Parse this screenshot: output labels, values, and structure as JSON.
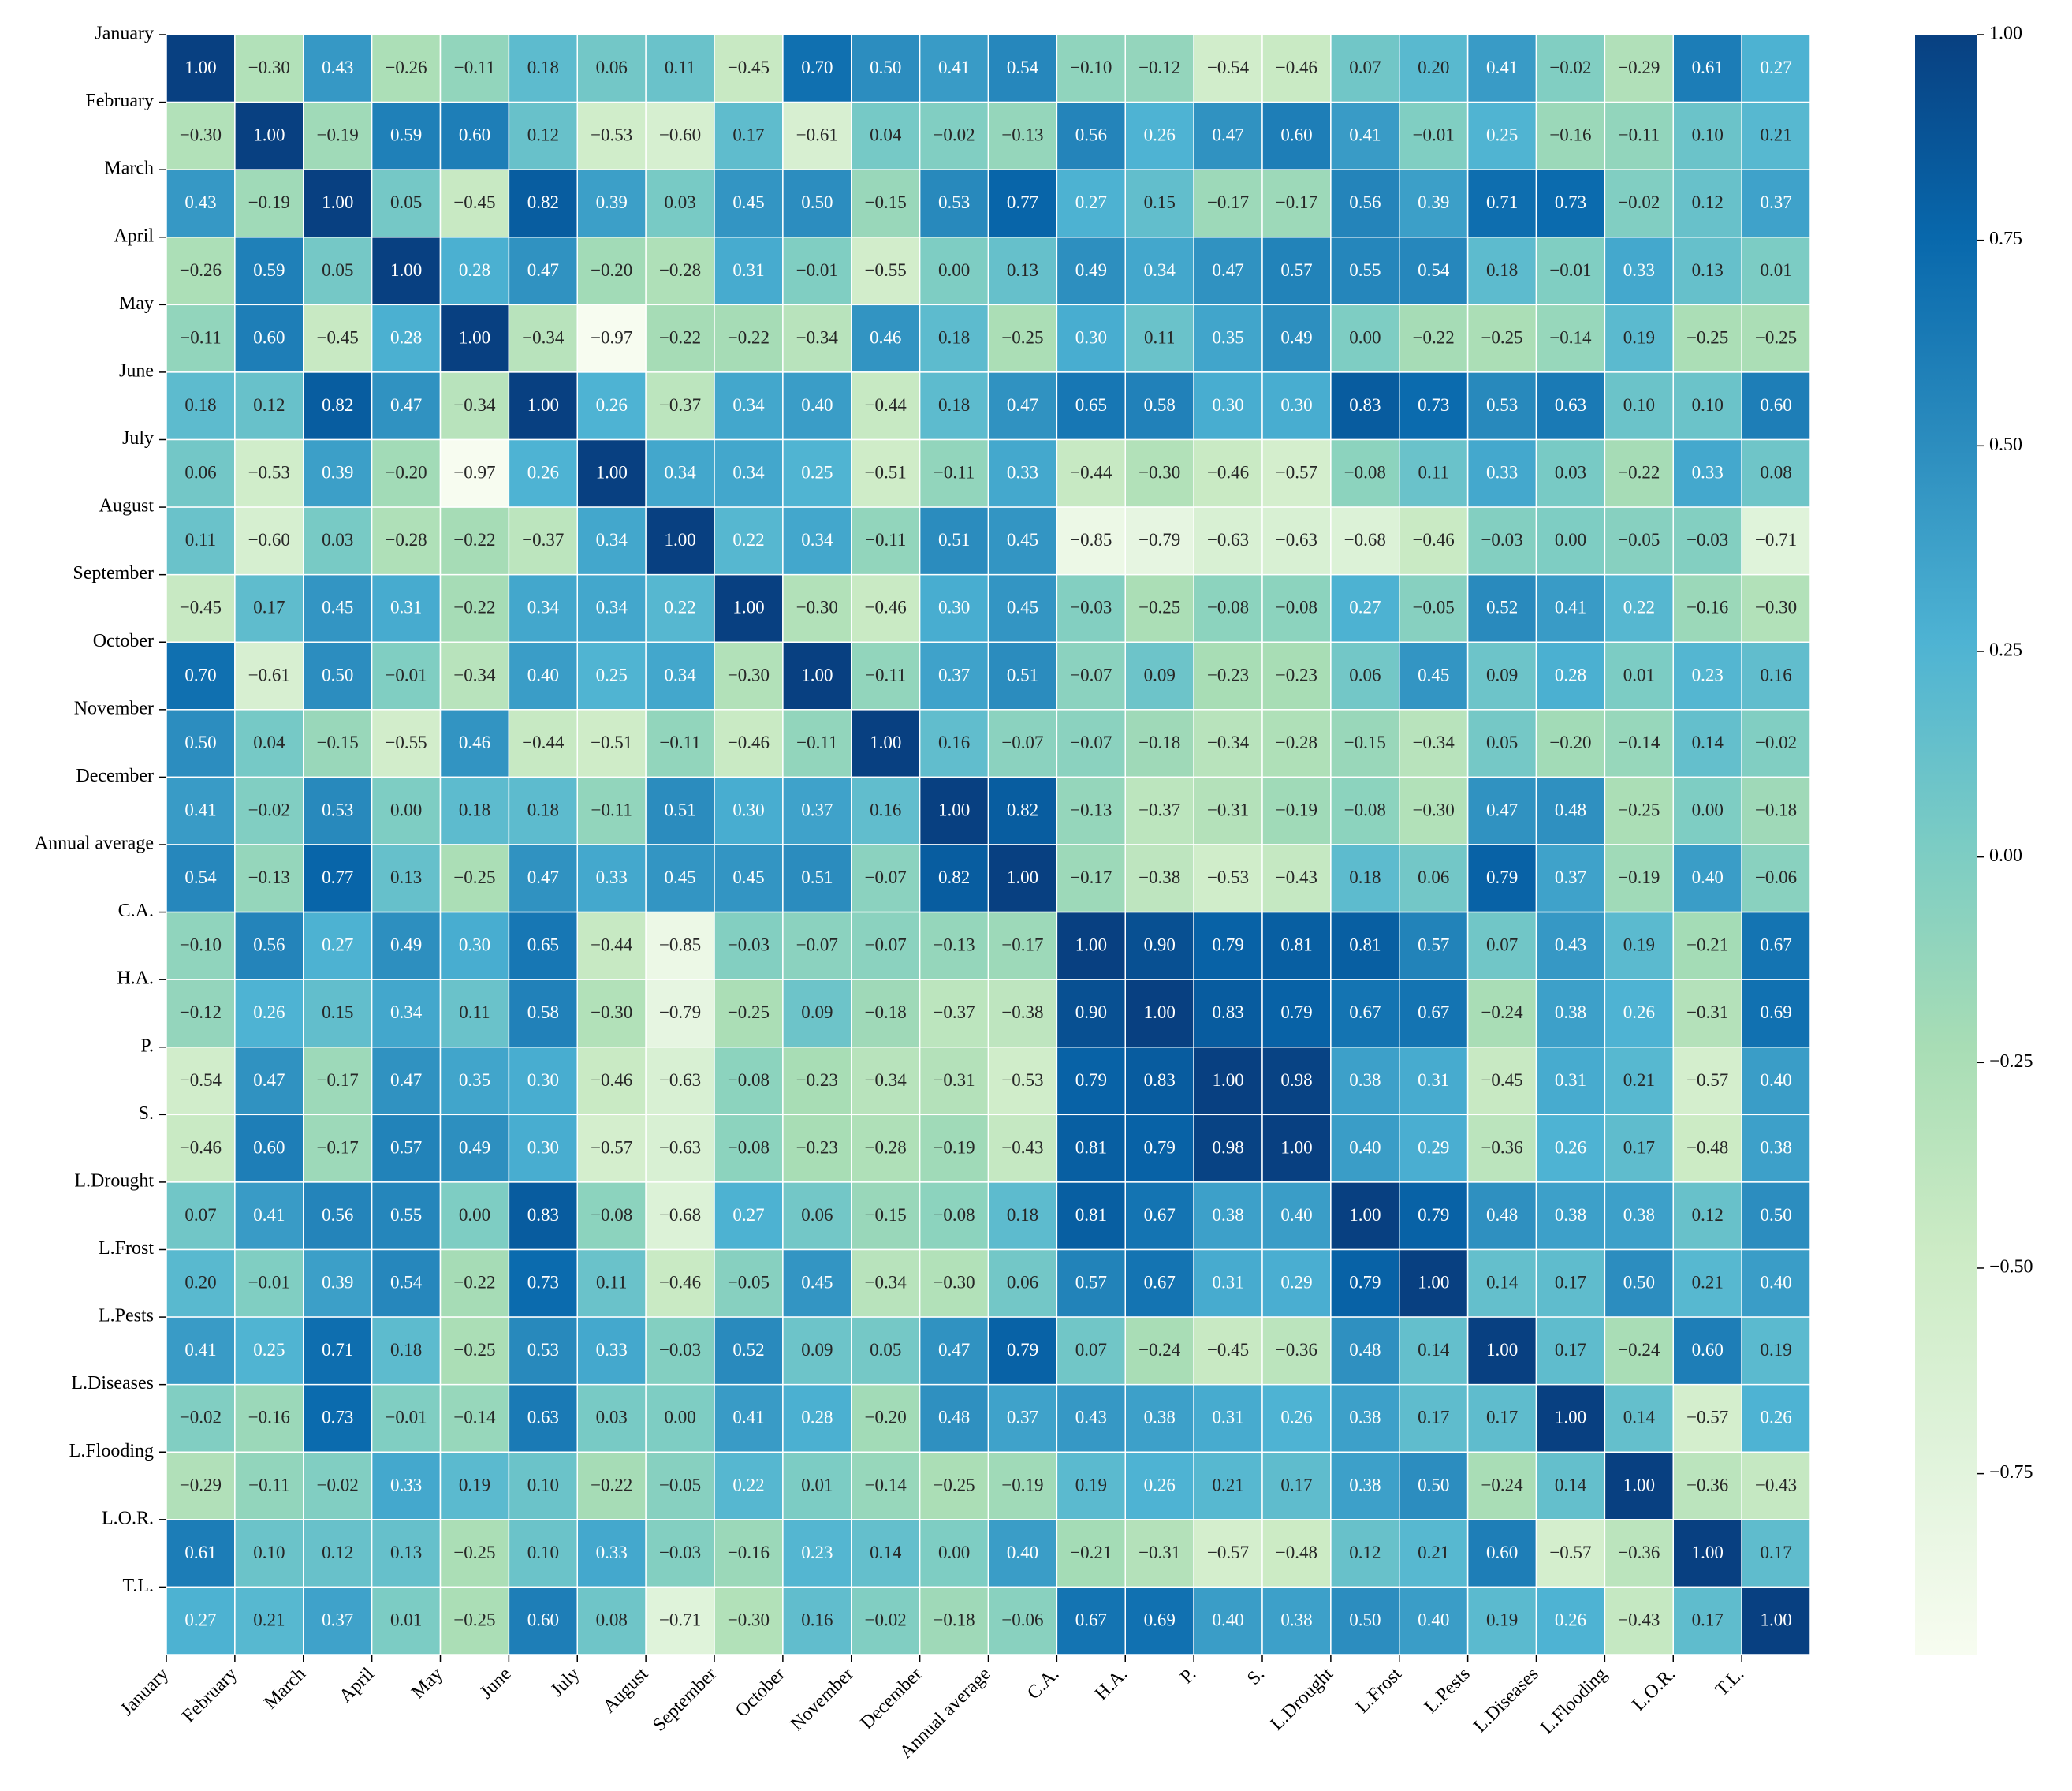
{
  "chart_data": {
    "type": "heatmap",
    "colormap": "GnBu",
    "clim": [
      -0.97,
      1.0
    ],
    "categories": [
      "January",
      "February",
      "March",
      "April",
      "May",
      "June",
      "July",
      "August",
      "September",
      "October",
      "November",
      "December",
      "Annual average",
      "C.A.",
      "H.A.",
      "P.",
      "S.",
      "L.Drought",
      "L.Frost",
      "L.Pests",
      "L.Diseases",
      "L.Flooding",
      "L.O.R.",
      "T.L."
    ],
    "values": [
      [
        1.0,
        -0.3,
        0.43,
        -0.26,
        -0.11,
        0.18,
        0.06,
        0.11,
        -0.45,
        0.7,
        0.5,
        0.41,
        0.54,
        -0.1,
        -0.12,
        -0.54,
        -0.46,
        0.07,
        0.2,
        0.41,
        -0.02,
        -0.29,
        0.61,
        0.27
      ],
      [
        -0.3,
        1.0,
        -0.19,
        0.59,
        0.6,
        0.12,
        -0.53,
        -0.6,
        0.17,
        -0.61,
        0.04,
        -0.02,
        -0.13,
        0.56,
        0.26,
        0.47,
        0.6,
        0.41,
        -0.01,
        0.25,
        -0.16,
        -0.11,
        0.1,
        0.21
      ],
      [
        0.43,
        -0.19,
        1.0,
        0.05,
        -0.45,
        0.82,
        0.39,
        0.03,
        0.45,
        0.5,
        -0.15,
        0.53,
        0.77,
        0.27,
        0.15,
        -0.17,
        -0.17,
        0.56,
        0.39,
        0.71,
        0.73,
        -0.02,
        0.12,
        0.37
      ],
      [
        -0.26,
        0.59,
        0.05,
        1.0,
        0.28,
        0.47,
        -0.2,
        -0.28,
        0.31,
        -0.01,
        -0.55,
        0.0,
        0.13,
        0.49,
        0.34,
        0.47,
        0.57,
        0.55,
        0.54,
        0.18,
        -0.01,
        0.33,
        0.13,
        0.01
      ],
      [
        -0.11,
        0.6,
        -0.45,
        0.28,
        1.0,
        -0.34,
        -0.97,
        -0.22,
        -0.22,
        -0.34,
        0.46,
        0.18,
        -0.25,
        0.3,
        0.11,
        0.35,
        0.49,
        0.0,
        -0.22,
        -0.25,
        -0.14,
        0.19,
        -0.25,
        -0.25
      ],
      [
        0.18,
        0.12,
        0.82,
        0.47,
        -0.34,
        1.0,
        0.26,
        -0.37,
        0.34,
        0.4,
        -0.44,
        0.18,
        0.47,
        0.65,
        0.58,
        0.3,
        0.3,
        0.83,
        0.73,
        0.53,
        0.63,
        0.1,
        0.1,
        0.6
      ],
      [
        0.06,
        -0.53,
        0.39,
        -0.2,
        -0.97,
        0.26,
        1.0,
        0.34,
        0.34,
        0.25,
        -0.51,
        -0.11,
        0.33,
        -0.44,
        -0.3,
        -0.46,
        -0.57,
        -0.08,
        0.11,
        0.33,
        0.03,
        -0.22,
        0.33,
        0.08
      ],
      [
        0.11,
        -0.6,
        0.03,
        -0.28,
        -0.22,
        -0.37,
        0.34,
        1.0,
        0.22,
        0.34,
        -0.11,
        0.51,
        0.45,
        -0.85,
        -0.79,
        -0.63,
        -0.63,
        -0.68,
        -0.46,
        -0.03,
        0.0,
        -0.05,
        -0.03,
        -0.71
      ],
      [
        -0.45,
        0.17,
        0.45,
        0.31,
        -0.22,
        0.34,
        0.34,
        0.22,
        1.0,
        -0.3,
        -0.46,
        0.3,
        0.45,
        -0.03,
        -0.25,
        -0.08,
        -0.08,
        0.27,
        -0.05,
        0.52,
        0.41,
        0.22,
        -0.16,
        -0.3
      ],
      [
        0.7,
        -0.61,
        0.5,
        -0.01,
        -0.34,
        0.4,
        0.25,
        0.34,
        -0.3,
        1.0,
        -0.11,
        0.37,
        0.51,
        -0.07,
        0.09,
        -0.23,
        -0.23,
        0.06,
        0.45,
        0.09,
        0.28,
        0.01,
        0.23,
        0.16
      ],
      [
        0.5,
        0.04,
        -0.15,
        -0.55,
        0.46,
        -0.44,
        -0.51,
        -0.11,
        -0.46,
        -0.11,
        1.0,
        0.16,
        -0.07,
        -0.07,
        -0.18,
        -0.34,
        -0.28,
        -0.15,
        -0.34,
        0.05,
        -0.2,
        -0.14,
        0.14,
        -0.02
      ],
      [
        0.41,
        -0.02,
        0.53,
        0.0,
        0.18,
        0.18,
        -0.11,
        0.51,
        0.3,
        0.37,
        0.16,
        1.0,
        0.82,
        -0.13,
        -0.37,
        -0.31,
        -0.19,
        -0.08,
        -0.3,
        0.47,
        0.48,
        -0.25,
        0.0,
        -0.18
      ],
      [
        0.54,
        -0.13,
        0.77,
        0.13,
        -0.25,
        0.47,
        0.33,
        0.45,
        0.45,
        0.51,
        -0.07,
        0.82,
        1.0,
        -0.17,
        -0.38,
        -0.53,
        -0.43,
        0.18,
        0.06,
        0.79,
        0.37,
        -0.19,
        0.4,
        -0.06
      ],
      [
        -0.1,
        0.56,
        0.27,
        0.49,
        0.3,
        0.65,
        -0.44,
        -0.85,
        -0.03,
        -0.07,
        -0.07,
        -0.13,
        -0.17,
        1.0,
        0.9,
        0.79,
        0.81,
        0.81,
        0.57,
        0.07,
        0.43,
        0.19,
        -0.21,
        0.67
      ],
      [
        -0.12,
        0.26,
        0.15,
        0.34,
        0.11,
        0.58,
        -0.3,
        -0.79,
        -0.25,
        0.09,
        -0.18,
        -0.37,
        -0.38,
        0.9,
        1.0,
        0.83,
        0.79,
        0.67,
        0.67,
        -0.24,
        0.38,
        0.26,
        -0.31,
        0.69
      ],
      [
        -0.54,
        0.47,
        -0.17,
        0.47,
        0.35,
        0.3,
        -0.46,
        -0.63,
        -0.08,
        -0.23,
        -0.34,
        -0.31,
        -0.53,
        0.79,
        0.83,
        1.0,
        0.98,
        0.38,
        0.31,
        -0.45,
        0.31,
        0.21,
        -0.57,
        0.4
      ],
      [
        -0.46,
        0.6,
        -0.17,
        0.57,
        0.49,
        0.3,
        -0.57,
        -0.63,
        -0.08,
        -0.23,
        -0.28,
        -0.19,
        -0.43,
        0.81,
        0.79,
        0.98,
        1.0,
        0.4,
        0.29,
        -0.36,
        0.26,
        0.17,
        -0.48,
        0.38
      ],
      [
        0.07,
        0.41,
        0.56,
        0.55,
        0.0,
        0.83,
        -0.08,
        -0.68,
        0.27,
        0.06,
        -0.15,
        -0.08,
        0.18,
        0.81,
        0.67,
        0.38,
        0.4,
        1.0,
        0.79,
        0.48,
        0.38,
        0.38,
        0.12,
        0.5
      ],
      [
        0.2,
        -0.01,
        0.39,
        0.54,
        -0.22,
        0.73,
        0.11,
        -0.46,
        -0.05,
        0.45,
        -0.34,
        -0.3,
        0.06,
        0.57,
        0.67,
        0.31,
        0.29,
        0.79,
        1.0,
        0.14,
        0.17,
        0.5,
        0.21,
        0.4
      ],
      [
        0.41,
        0.25,
        0.71,
        0.18,
        -0.25,
        0.53,
        0.33,
        -0.03,
        0.52,
        0.09,
        0.05,
        0.47,
        0.79,
        0.07,
        -0.24,
        -0.45,
        -0.36,
        0.48,
        0.14,
        1.0,
        0.17,
        -0.24,
        0.6,
        0.19
      ],
      [
        -0.02,
        -0.16,
        0.73,
        -0.01,
        -0.14,
        0.63,
        0.03,
        0.0,
        0.41,
        0.28,
        -0.2,
        0.48,
        0.37,
        0.43,
        0.38,
        0.31,
        0.26,
        0.38,
        0.17,
        0.17,
        1.0,
        0.14,
        -0.57,
        0.26
      ],
      [
        -0.29,
        -0.11,
        -0.02,
        0.33,
        0.19,
        0.1,
        -0.22,
        -0.05,
        0.22,
        0.01,
        -0.14,
        -0.25,
        -0.19,
        0.19,
        0.26,
        0.21,
        0.17,
        0.38,
        0.5,
        -0.24,
        0.14,
        1.0,
        -0.36,
        -0.43
      ],
      [
        0.61,
        0.1,
        0.12,
        0.13,
        -0.25,
        0.1,
        0.33,
        -0.03,
        -0.16,
        0.23,
        0.14,
        0.0,
        0.4,
        -0.21,
        -0.31,
        -0.57,
        -0.48,
        0.12,
        0.21,
        0.6,
        -0.57,
        -0.36,
        1.0,
        0.17
      ],
      [
        0.27,
        0.21,
        0.37,
        0.01,
        -0.25,
        0.6,
        0.08,
        -0.71,
        -0.3,
        0.16,
        -0.02,
        -0.18,
        -0.06,
        0.67,
        0.69,
        0.4,
        0.38,
        0.5,
        0.4,
        0.19,
        0.26,
        -0.43,
        0.17,
        1.0
      ]
    ],
    "value_labels": [
      [
        "1.00",
        "−0.30",
        "0.43",
        "−0.26",
        "−0.11",
        "0.18",
        "0.06",
        "0.11",
        "−0.45",
        "0.70",
        "0.50",
        "0.41",
        "0.54",
        "−0.10",
        "−0.12",
        "−0.54",
        "−0.46",
        "0.07",
        "0.20",
        "0.41",
        "−0.02",
        "−0.29",
        "0.61",
        "0.27"
      ],
      [
        "−0.30",
        "1.00",
        "−0.19",
        "0.59",
        "0.60",
        "0.12",
        "−0.53",
        "−0.60",
        "0.17",
        "−0.61",
        "0.04",
        "−0.02",
        "−0.13",
        "0.56",
        "0.26",
        "0.47",
        "0.60",
        "0.41",
        "−0.01",
        "0.25",
        "−0.16",
        "−0.11",
        "0.10",
        "0.21"
      ],
      [
        "0.43",
        "−0.19",
        "1.00",
        "0.05",
        "−0.45",
        "0.82",
        "0.39",
        "0.03",
        "0.45",
        "0.50",
        "−0.15",
        "0.53",
        "0.77",
        "0.27",
        "0.15",
        "−0.17",
        "−0.17",
        "0.56",
        "0.39",
        "0.71",
        "0.73",
        "−0.02",
        "0.12",
        "0.37"
      ],
      [
        "−0.26",
        "0.59",
        "0.05",
        "1.00",
        "0.28",
        "0.47",
        "−0.20",
        "−0.28",
        "0.31",
        "−0.01",
        "−0.55",
        "0.00",
        "0.13",
        "0.49",
        "0.34",
        "0.47",
        "0.57",
        "0.55",
        "0.54",
        "0.18",
        "−0.01",
        "0.33",
        "0.13",
        "0.01"
      ],
      [
        "−0.11",
        "0.60",
        "−0.45",
        "0.28",
        "1.00",
        "−0.34",
        "−0.97",
        "−0.22",
        "−0.22",
        "−0.34",
        "0.46",
        "0.18",
        "−0.25",
        "0.30",
        "0.11",
        "0.35",
        "0.49",
        "0.00",
        "−0.22",
        "−0.25",
        "−0.14",
        "0.19",
        "−0.25",
        "−0.25"
      ],
      [
        "0.18",
        "0.12",
        "0.82",
        "0.47",
        "−0.34",
        "1.00",
        "0.26",
        "−0.37",
        "0.34",
        "0.40",
        "−0.44",
        "0.18",
        "0.47",
        "0.65",
        "0.58",
        "0.30",
        "0.30",
        "0.83",
        "0.73",
        "0.53",
        "0.63",
        "0.10",
        "0.10",
        "0.60"
      ],
      [
        "0.06",
        "−0.53",
        "0.39",
        "−0.20",
        "−0.97",
        "0.26",
        "1.00",
        "0.34",
        "0.34",
        "0.25",
        "−0.51",
        "−0.11",
        "0.33",
        "−0.44",
        "−0.30",
        "−0.46",
        "−0.57",
        "−0.08",
        "0.11",
        "0.33",
        "0.03",
        "−0.22",
        "0.33",
        "0.08"
      ],
      [
        "0.11",
        "−0.60",
        "0.03",
        "−0.28",
        "−0.22",
        "−0.37",
        "0.34",
        "1.00",
        "0.22",
        "0.34",
        "−0.11",
        "0.51",
        "0.45",
        "−0.85",
        "−0.79",
        "−0.63",
        "−0.63",
        "−0.68",
        "−0.46",
        "−0.03",
        "0.00",
        "−0.05",
        "−0.03",
        "−0.71"
      ],
      [
        "−0.45",
        "0.17",
        "0.45",
        "0.31",
        "−0.22",
        "0.34",
        "0.34",
        "0.22",
        "1.00",
        "−0.30",
        "−0.46",
        "0.30",
        "0.45",
        "−0.03",
        "−0.25",
        "−0.08",
        "−0.08",
        "0.27",
        "−0.05",
        "0.52",
        "0.41",
        "0.22",
        "−0.16",
        "−0.30"
      ],
      [
        "0.70",
        "−0.61",
        "0.50",
        "−0.01",
        "−0.34",
        "0.40",
        "0.25",
        "0.34",
        "−0.30",
        "1.00",
        "−0.11",
        "0.37",
        "0.51",
        "−0.07",
        "0.09",
        "−0.23",
        "−0.23",
        "0.06",
        "0.45",
        "0.09",
        "0.28",
        "0.01",
        "0.23",
        "0.16"
      ],
      [
        "0.50",
        "0.04",
        "−0.15",
        "−0.55",
        "0.46",
        "−0.44",
        "−0.51",
        "−0.11",
        "−0.46",
        "−0.11",
        "1.00",
        "0.16",
        "−0.07",
        "−0.07",
        "−0.18",
        "−0.34",
        "−0.28",
        "−0.15",
        "−0.34",
        "0.05",
        "−0.20",
        "−0.14",
        "0.14",
        "−0.02"
      ],
      [
        "0.41",
        "−0.02",
        "0.53",
        "0.00",
        "0.18",
        "0.18",
        "−0.11",
        "0.51",
        "0.30",
        "0.37",
        "0.16",
        "1.00",
        "0.82",
        "−0.13",
        "−0.37",
        "−0.31",
        "−0.19",
        "−0.08",
        "−0.30",
        "0.47",
        "0.48",
        "−0.25",
        "0.00",
        "−0.18"
      ],
      [
        "0.54",
        "−0.13",
        "0.77",
        "0.13",
        "−0.25",
        "0.47",
        "0.33",
        "0.45",
        "0.45",
        "0.51",
        "−0.07",
        "0.82",
        "1.00",
        "−0.17",
        "−0.38",
        "−0.53",
        "−0.43",
        "0.18",
        "0.06",
        "0.79",
        "0.37",
        "−0.19",
        "0.40",
        "−0.06"
      ],
      [
        "−0.10",
        "0.56",
        "0.27",
        "0.49",
        "0.30",
        "0.65",
        "−0.44",
        "−0.85",
        "−0.03",
        "−0.07",
        "−0.07",
        "−0.13",
        "−0.17",
        "1.00",
        "0.90",
        "0.79",
        "0.81",
        "0.81",
        "0.57",
        "0.07",
        "0.43",
        "0.19",
        "−0.21",
        "0.67"
      ],
      [
        "−0.12",
        "0.26",
        "0.15",
        "0.34",
        "0.11",
        "0.58",
        "−0.30",
        "−0.79",
        "−0.25",
        "0.09",
        "−0.18",
        "−0.37",
        "−0.38",
        "0.90",
        "1.00",
        "0.83",
        "0.79",
        "0.67",
        "0.67",
        "−0.24",
        "0.38",
        "0.26",
        "−0.31",
        "0.69"
      ],
      [
        "−0.54",
        "0.47",
        "−0.17",
        "0.47",
        "0.35",
        "0.30",
        "−0.46",
        "−0.63",
        "−0.08",
        "−0.23",
        "−0.34",
        "−0.31",
        "−0.53",
        "0.79",
        "0.83",
        "1.00",
        "0.98",
        "0.38",
        "0.31",
        "−0.45",
        "0.31",
        "0.21",
        "−0.57",
        "0.40"
      ],
      [
        "−0.46",
        "0.60",
        "−0.17",
        "0.57",
        "0.49",
        "0.30",
        "−0.57",
        "−0.63",
        "−0.08",
        "−0.23",
        "−0.28",
        "−0.19",
        "−0.43",
        "0.81",
        "0.79",
        "0.98",
        "1.00",
        "0.40",
        "0.29",
        "−0.36",
        "0.26",
        "0.17",
        "−0.48",
        "0.38"
      ],
      [
        "0.07",
        "0.41",
        "0.56",
        "0.55",
        "0.00",
        "0.83",
        "−0.08",
        "−0.68",
        "0.27",
        "0.06",
        "−0.15",
        "−0.08",
        "0.18",
        "0.81",
        "0.67",
        "0.38",
        "0.40",
        "1.00",
        "0.79",
        "0.48",
        "0.38",
        "0.38",
        "0.12",
        "0.50"
      ],
      [
        "0.20",
        "−0.01",
        "0.39",
        "0.54",
        "−0.22",
        "0.73",
        "0.11",
        "−0.46",
        "−0.05",
        "0.45",
        "−0.34",
        "−0.30",
        "0.06",
        "0.57",
        "0.67",
        "0.31",
        "0.29",
        "0.79",
        "1.00",
        "0.14",
        "0.17",
        "0.50",
        "0.21",
        "0.40"
      ],
      [
        "0.41",
        "0.25",
        "0.71",
        "0.18",
        "−0.25",
        "0.53",
        "0.33",
        "−0.03",
        "0.52",
        "0.09",
        "0.05",
        "0.47",
        "0.79",
        "0.07",
        "−0.24",
        "−0.45",
        "−0.36",
        "0.48",
        "0.14",
        "1.00",
        "0.17",
        "−0.24",
        "0.60",
        "0.19"
      ],
      [
        "−0.02",
        "−0.16",
        "0.73",
        "−0.01",
        "−0.14",
        "0.63",
        "0.03",
        "0.00",
        "0.41",
        "0.28",
        "−0.20",
        "0.48",
        "0.37",
        "0.43",
        "0.38",
        "0.31",
        "0.26",
        "0.38",
        "0.17",
        "0.17",
        "1.00",
        "0.14",
        "−0.57",
        "0.26"
      ],
      [
        "−0.29",
        "−0.11",
        "−0.02",
        "0.33",
        "0.19",
        "0.10",
        "−0.22",
        "−0.05",
        "0.22",
        "0.01",
        "−0.14",
        "−0.25",
        "−0.19",
        "0.19",
        "0.26",
        "0.21",
        "0.17",
        "0.38",
        "0.50",
        "−0.24",
        "0.14",
        "1.00",
        "−0.36",
        "−0.43"
      ],
      [
        "0.61",
        "0.10",
        "0.12",
        "0.13",
        "−0.25",
        "0.10",
        "0.33",
        "−0.03",
        "−0.16",
        "0.23",
        "0.14",
        "0.00",
        "0.40",
        "−0.21",
        "−0.31",
        "−0.57",
        "−0.48",
        "0.12",
        "0.21",
        "0.60",
        "−0.57",
        "−0.36",
        "1.00",
        "0.17"
      ],
      [
        "0.27",
        "0.21",
        "0.37",
        "0.01",
        "−0.25",
        "0.60",
        "0.08",
        "−0.71",
        "−0.30",
        "0.16",
        "−0.02",
        "−0.18",
        "−0.06",
        "0.67",
        "0.69",
        "0.40",
        "0.38",
        "0.50",
        "0.40",
        "0.19",
        "0.26",
        "−0.43",
        "0.17",
        "1.00"
      ]
    ],
    "colorbar_ticks": [
      {
        "value": 1.0,
        "label": "1.00"
      },
      {
        "value": 0.75,
        "label": "0.75"
      },
      {
        "value": 0.5,
        "label": "0.50"
      },
      {
        "value": 0.25,
        "label": "0.25"
      },
      {
        "value": 0.0,
        "label": "0.00"
      },
      {
        "value": -0.25,
        "label": "−0.25"
      },
      {
        "value": -0.5,
        "label": "−0.50"
      },
      {
        "value": -0.75,
        "label": "−0.75"
      }
    ]
  }
}
